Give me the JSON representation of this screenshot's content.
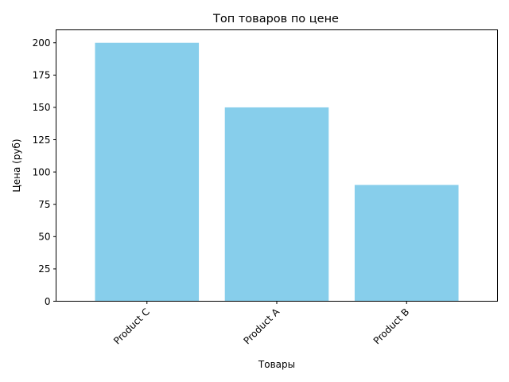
{
  "chart_data": {
    "type": "bar",
    "title": "Топ товаров по цене",
    "xlabel": "Товары",
    "ylabel": "Цена (руб)",
    "categories": [
      "Product C",
      "Product A",
      "Product B"
    ],
    "values": [
      200,
      150,
      90
    ],
    "ylim": [
      0,
      210
    ],
    "yticks": [
      0,
      25,
      50,
      75,
      100,
      125,
      150,
      175,
      200
    ],
    "bar_color": "#87ceeb",
    "grid": false,
    "x_tick_rotation_deg": 45
  }
}
